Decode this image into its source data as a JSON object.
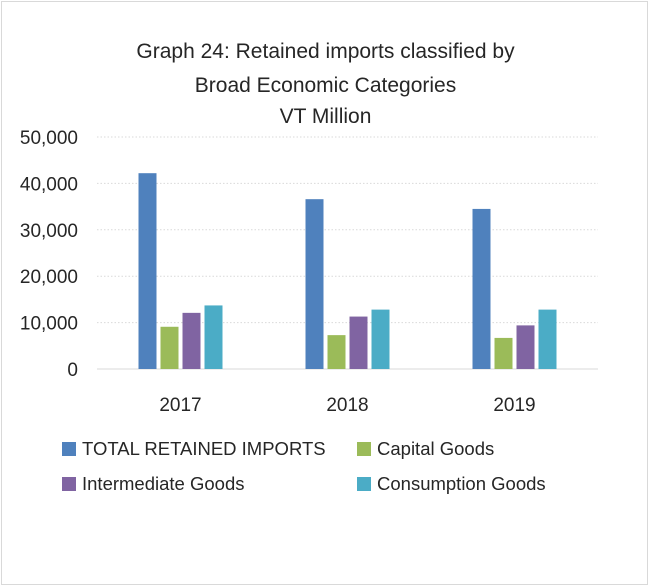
{
  "chart_data": {
    "type": "bar",
    "title": "Graph 24: Retained imports classified by",
    "subtitle": "Broad Economic Categories",
    "unit_label": "VT Million",
    "categories": [
      "2017",
      "2018",
      "2019"
    ],
    "series": [
      {
        "name": "TOTAL RETAINED IMPORTS",
        "color": "#4f81bd",
        "values": [
          42200,
          36600,
          34500
        ]
      },
      {
        "name": "Capital Goods",
        "color": "#9bbb59",
        "values": [
          9100,
          7300,
          6700
        ]
      },
      {
        "name": "Intermediate Goods",
        "color": "#8064a2",
        "values": [
          12100,
          11300,
          9400
        ]
      },
      {
        "name": "Consumption Goods",
        "color": "#4bacc6",
        "values": [
          13700,
          12800,
          12800
        ]
      }
    ],
    "yticks": [
      "0",
      "10,000",
      "20,000",
      "30,000",
      "40,000",
      "50,000"
    ],
    "ylim": [
      0,
      50000
    ],
    "grid": true,
    "legend": "bottom"
  }
}
